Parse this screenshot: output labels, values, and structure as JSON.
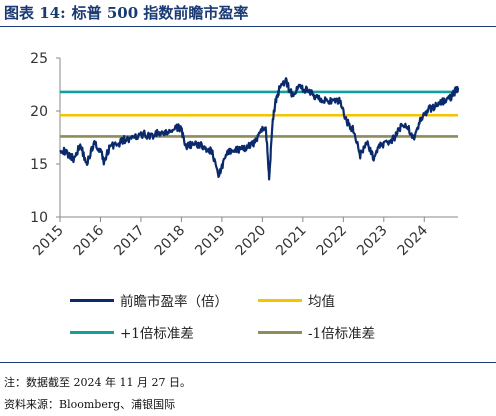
{
  "header": {
    "figure_no": "图表 14:",
    "title": "标普 500 指数前瞻市盈率"
  },
  "colors": {
    "pe": "#0b2a6b",
    "mean": "#f5c400",
    "plus1": "#14a09a",
    "minus1": "#8c8c5c",
    "brand": "#1a3a73"
  },
  "chart_data": {
    "type": "line",
    "title": "",
    "xlabel": "",
    "ylabel": "",
    "x_ticks": [
      "2015",
      "2016",
      "2017",
      "2018",
      "2019",
      "2020",
      "2021",
      "2022",
      "2023",
      "2024"
    ],
    "y_ticks": [
      "10",
      "15",
      "20",
      "25"
    ],
    "ylim": [
      10,
      25
    ],
    "xlim": [
      "2015-01",
      "2024-11"
    ],
    "grid": false,
    "legend": "bottom",
    "series": [
      {
        "name": "前瞻市盈率(倍)",
        "color": "#0b2a6b",
        "x": [
          "2015-01",
          "2015-03",
          "2015-05",
          "2015-07",
          "2015-09",
          "2015-11",
          "2016-01",
          "2016-02",
          "2016-04",
          "2016-06",
          "2016-08",
          "2016-10",
          "2016-12",
          "2017-02",
          "2017-04",
          "2017-06",
          "2017-08",
          "2017-10",
          "2017-12",
          "2018-01",
          "2018-02",
          "2018-04",
          "2018-06",
          "2018-08",
          "2018-10",
          "2018-12",
          "2019-02",
          "2019-04",
          "2019-06",
          "2019-08",
          "2019-10",
          "2019-12",
          "2020-02",
          "2020-03",
          "2020-04",
          "2020-05",
          "2020-06",
          "2020-08",
          "2020-09",
          "2020-10",
          "2020-12",
          "2021-02",
          "2021-04",
          "2021-06",
          "2021-08",
          "2021-10",
          "2021-12",
          "2022-02",
          "2022-04",
          "2022-06",
          "2022-08",
          "2022-10",
          "2022-12",
          "2023-02",
          "2023-04",
          "2023-06",
          "2023-08",
          "2023-10",
          "2023-12",
          "2024-02",
          "2024-04",
          "2024-06",
          "2024-08",
          "2024-10",
          "2024-11"
        ],
        "y": [
          16.5,
          16.0,
          15.5,
          16.8,
          15.0,
          17.0,
          16.3,
          15.2,
          16.8,
          16.8,
          17.3,
          17.3,
          17.6,
          17.8,
          17.6,
          17.9,
          17.8,
          18.2,
          18.4,
          18.4,
          16.6,
          16.8,
          16.9,
          16.5,
          16.2,
          13.9,
          15.6,
          16.5,
          16.3,
          16.5,
          16.8,
          17.8,
          18.6,
          13.6,
          19.0,
          21.0,
          22.0,
          22.8,
          22.0,
          21.5,
          22.3,
          22.0,
          21.5,
          21.2,
          21.0,
          20.8,
          21.0,
          19.0,
          18.2,
          15.8,
          17.0,
          15.6,
          16.8,
          17.0,
          17.4,
          18.5,
          18.5,
          17.5,
          19.2,
          20.1,
          20.4,
          20.9,
          21.0,
          21.8,
          22.2
        ]
      },
      {
        "name": "均值",
        "color": "#f5c400",
        "value": 19.6
      },
      {
        "name": "+1倍标准差",
        "color": "#14a09a",
        "value": 21.8
      },
      {
        "name": "-1倍标准差",
        "color": "#8c8c5c",
        "value": 17.6
      }
    ]
  },
  "legend": {
    "items": [
      {
        "label": "前瞻市盈率（倍）",
        "color": "#0b2a6b"
      },
      {
        "label": "均值",
        "color": "#f5c400"
      },
      {
        "label": "+1倍标准差",
        "color": "#14a09a"
      },
      {
        "label": "-1倍标准差",
        "color": "#8c8c5c"
      }
    ]
  },
  "footer": {
    "note": "注：数据截至 2024 年 11 月 27 日。",
    "source": "资料来源：Bloomberg、浦银国际"
  }
}
